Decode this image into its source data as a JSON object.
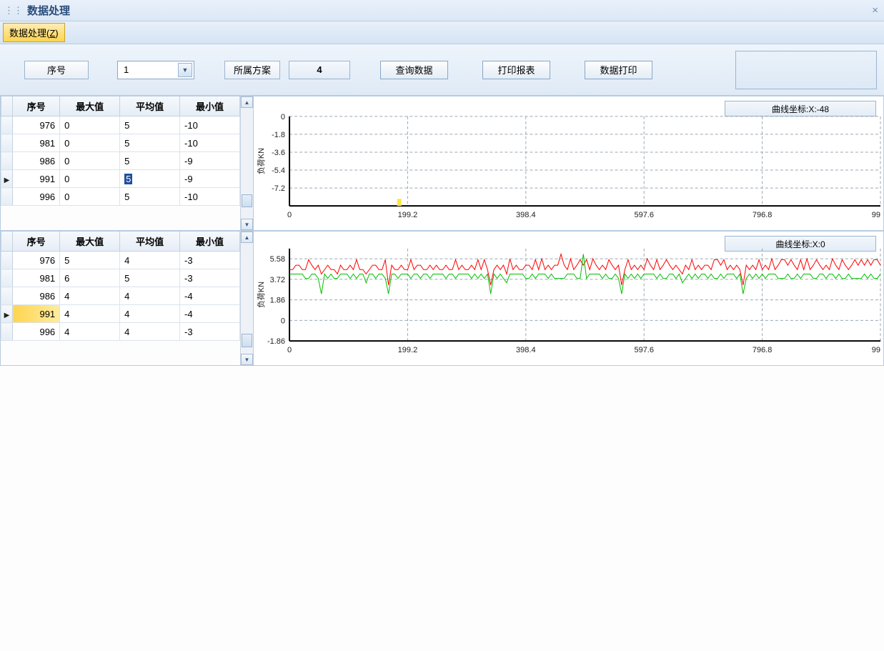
{
  "window": {
    "title": "数据处理",
    "close_glyph": "×"
  },
  "menubar": {
    "item1_label": "数据处理(",
    "item1_accel": "Z",
    "item1_suffix": ")"
  },
  "toolbar": {
    "xuhao_label": "序号",
    "dropdown_value": "1",
    "fangan_label": "所属方案",
    "fangan_value": "4",
    "query_label": "查询数据",
    "print_report_label": "打印报表",
    "print_data_label": "数据打印"
  },
  "table_headers": {
    "c1": "序号",
    "c2": "最大值",
    "c3": "平均值",
    "c4": "最小值"
  },
  "table1": {
    "rows": [
      {
        "seq": "976",
        "max": "0",
        "avg": "5",
        "min": "-10",
        "cursor": false,
        "avg_selected": false
      },
      {
        "seq": "981",
        "max": "0",
        "avg": "5",
        "min": "-10",
        "cursor": false,
        "avg_selected": false
      },
      {
        "seq": "986",
        "max": "0",
        "avg": "5",
        "min": "-9",
        "cursor": false,
        "avg_selected": false
      },
      {
        "seq": "991",
        "max": "0",
        "avg": "5",
        "min": "-9",
        "cursor": true,
        "avg_selected": true
      },
      {
        "seq": "996",
        "max": "0",
        "avg": "5",
        "min": "-10",
        "cursor": false,
        "avg_selected": false
      }
    ],
    "scrollbar": {
      "thumb_top_pct": 78,
      "thumb_height_pct": 12
    }
  },
  "table2": {
    "rows": [
      {
        "seq": "976",
        "max": "5",
        "avg": "4",
        "min": "-3",
        "cursor": false,
        "hl": false
      },
      {
        "seq": "981",
        "max": "6",
        "avg": "5",
        "min": "-3",
        "cursor": false,
        "hl": false
      },
      {
        "seq": "986",
        "max": "4",
        "avg": "4",
        "min": "-4",
        "cursor": false,
        "hl": false
      },
      {
        "seq": "991",
        "max": "4",
        "avg": "4",
        "min": "-4",
        "cursor": true,
        "hl": true
      },
      {
        "seq": "996",
        "max": "4",
        "avg": "4",
        "min": "-3",
        "cursor": false,
        "hl": false
      }
    ],
    "scrollbar": {
      "thumb_top_pct": 82,
      "thumb_height_pct": 12
    }
  },
  "chart1": {
    "coord_label": "曲线坐标:X:-48",
    "y_label": "负荷KN",
    "background_color": "#ffffff",
    "grid_color": "#9aa7b4",
    "axis_color": "#000000",
    "xlim": [
      0,
      996
    ],
    "ylim": [
      -9,
      0
    ],
    "y_ticks": [
      0,
      -1.8,
      -3.6,
      -5.4,
      -7.2
    ],
    "y_tick_labels": [
      "0",
      "-1.8",
      "-3.6",
      "-5.4",
      "-7.2"
    ],
    "x_ticks": [
      0,
      199.2,
      398.4,
      597.6,
      796.8,
      996
    ],
    "x_tick_labels": [
      "0",
      "199.2",
      "398.4",
      "597.6",
      "796.8",
      "99"
    ],
    "marker": {
      "x": 185,
      "color": "#ffe640"
    },
    "label_fontsize": 11
  },
  "chart2": {
    "coord_label": "曲线坐标:X:0",
    "y_label": "负荷KN",
    "background_color": "#ffffff",
    "grid_color": "#9aa7b4",
    "axis_color": "#000000",
    "xlim": [
      0,
      996
    ],
    "ylim": [
      -1.86,
      6.5
    ],
    "y_ticks": [
      5.58,
      3.72,
      1.86,
      0,
      -1.86
    ],
    "y_tick_labels": [
      "5.58",
      "3.72",
      "1.86",
      "0",
      "-1.86"
    ],
    "x_ticks": [
      0,
      199.2,
      398.4,
      597.6,
      796.8,
      996
    ],
    "x_tick_labels": [
      "0",
      "199.2",
      "398.4",
      "597.6",
      "796.8",
      "99"
    ],
    "series": [
      {
        "name": "max",
        "color": "#ff0000",
        "line_width": 1,
        "values": [
          4.6,
          4.6,
          5.0,
          5.0,
          4.6,
          4.6,
          5.5,
          5.0,
          4.6,
          5.0,
          4.2,
          4.6,
          5.0,
          4.6,
          4.6,
          4.2,
          5.0,
          4.6,
          4.6,
          5.0,
          4.6,
          5.5,
          4.6,
          4.6,
          4.2,
          4.6,
          5.0,
          5.0,
          4.6,
          4.6,
          5.5,
          3.2,
          5.0,
          4.6,
          4.6,
          5.0,
          4.6,
          4.6,
          5.5,
          4.6,
          5.0,
          5.0,
          4.6,
          4.6,
          5.0,
          4.6,
          5.0,
          4.6,
          4.6,
          5.0,
          4.6,
          4.6,
          5.5,
          4.6,
          5.0,
          4.6,
          4.6,
          5.0,
          4.6,
          5.5,
          4.6,
          5.5,
          4.6,
          3.2,
          4.6,
          5.0,
          4.6,
          5.0,
          4.2,
          5.58,
          4.6,
          5.0,
          4.6,
          4.6,
          5.0,
          5.0,
          4.6,
          5.5,
          4.6,
          5.58,
          4.6,
          5.0,
          4.6,
          5.0,
          5.0,
          6.0,
          5.0,
          4.6,
          5.58,
          4.6,
          5.0,
          5.5,
          5.0,
          5.5,
          4.6,
          5.58,
          5.0,
          4.6,
          5.0,
          4.6,
          5.5,
          5.0,
          4.6,
          5.0,
          3.2,
          4.6,
          5.5,
          4.6,
          5.0,
          4.6,
          5.0,
          4.6,
          5.58,
          5.0,
          4.6,
          5.5,
          4.6,
          5.0,
          5.5,
          5.0,
          4.6,
          5.0,
          4.6,
          4.2,
          5.0,
          4.6,
          5.5,
          4.6,
          5.0,
          4.6,
          5.0,
          5.0,
          4.6,
          5.5,
          5.5,
          5.0,
          5.5,
          4.6,
          5.0,
          4.6,
          5.0,
          4.6,
          3.2,
          5.0,
          4.6,
          5.0,
          4.6,
          5.5,
          4.6,
          5.0,
          4.6,
          5.58,
          4.6,
          5.0,
          5.5,
          5.5,
          5.0,
          5.5,
          5.0,
          4.6,
          5.5,
          4.6,
          5.58,
          4.6,
          5.0,
          5.5,
          5.0,
          4.6,
          5.0,
          4.6,
          5.58,
          5.0,
          4.6,
          5.5,
          5.0,
          4.6,
          5.0,
          5.5,
          5.0,
          5.5,
          5.0,
          5.5,
          5.0,
          5.5,
          5.5,
          5.0
        ]
      },
      {
        "name": "avg",
        "color": "#00c000",
        "line_width": 1,
        "values": [
          4.2,
          4.2,
          4.2,
          4.2,
          4.2,
          3.8,
          3.8,
          4.2,
          4.2,
          3.8,
          2.4,
          4.2,
          3.8,
          4.2,
          3.8,
          3.8,
          4.2,
          4.2,
          4.2,
          3.8,
          4.2,
          3.8,
          4.2,
          4.2,
          3.4,
          4.2,
          4.2,
          3.8,
          4.2,
          4.2,
          3.8,
          2.4,
          4.2,
          4.2,
          3.8,
          4.2,
          4.2,
          4.2,
          3.8,
          4.2,
          4.2,
          3.8,
          4.2,
          4.2,
          3.8,
          4.2,
          4.2,
          4.2,
          4.2,
          3.8,
          4.2,
          4.2,
          3.8,
          4.2,
          4.2,
          4.2,
          4.2,
          3.8,
          4.2,
          3.8,
          4.2,
          3.8,
          4.2,
          2.4,
          4.2,
          3.8,
          4.2,
          3.8,
          3.4,
          4.2,
          4.2,
          4.2,
          4.2,
          4.2,
          3.8,
          3.8,
          4.2,
          3.8,
          4.2,
          4.2,
          4.2,
          3.8,
          4.2,
          3.8,
          3.8,
          3.8,
          3.8,
          4.2,
          4.2,
          4.2,
          3.8,
          3.8,
          6.0,
          3.8,
          4.2,
          4.2,
          4.2,
          4.2,
          3.8,
          4.2,
          3.8,
          3.8,
          4.2,
          3.8,
          2.4,
          4.2,
          3.8,
          4.2,
          3.8,
          4.2,
          3.8,
          4.2,
          4.2,
          4.2,
          4.2,
          3.8,
          4.2,
          3.8,
          3.8,
          4.2,
          4.2,
          3.8,
          4.2,
          3.4,
          3.8,
          4.2,
          3.8,
          4.2,
          3.8,
          4.2,
          4.2,
          3.8,
          4.2,
          3.8,
          3.8,
          4.2,
          3.8,
          4.2,
          4.2,
          4.2,
          3.8,
          4.2,
          2.4,
          3.8,
          4.2,
          3.8,
          4.2,
          3.8,
          4.2,
          3.8,
          4.2,
          4.2,
          4.2,
          3.8,
          3.8,
          3.8,
          4.2,
          3.8,
          3.8,
          4.2,
          3.8,
          4.2,
          4.2,
          4.2,
          3.8,
          3.8,
          4.2,
          4.2,
          3.8,
          4.2,
          4.2,
          3.8,
          4.2,
          3.8,
          3.8,
          4.2,
          3.8,
          3.8,
          3.8,
          3.8,
          4.2,
          3.8,
          4.2,
          3.8,
          3.8,
          4.2
        ]
      }
    ],
    "label_fontsize": 11
  }
}
